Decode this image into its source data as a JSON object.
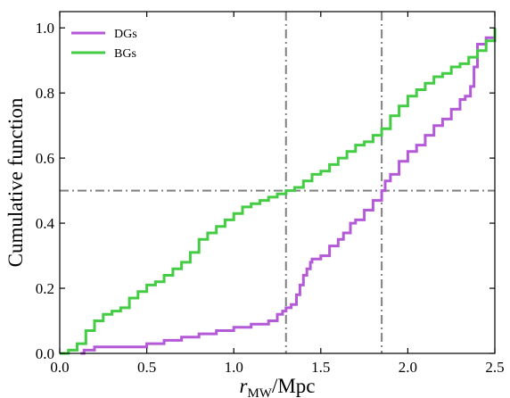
{
  "chart_data": {
    "type": "line",
    "xlabel": {
      "italic": "r",
      "subscript": "MW",
      "rest": "/Mpc"
    },
    "ylabel": "Cumulative function",
    "xlim": [
      0.0,
      2.5
    ],
    "ylim": [
      0.0,
      1.05
    ],
    "xticks": [
      0.0,
      0.5,
      1.0,
      1.5,
      2.0,
      2.5
    ],
    "xtick_labels": [
      "0.0",
      "0.5",
      "1.0",
      "1.5",
      "2.0",
      "2.5"
    ],
    "yticks": [
      0.0,
      0.2,
      0.4,
      0.6,
      0.8,
      1.0
    ],
    "ytick_labels": [
      "0.0",
      "0.2",
      "0.4",
      "0.6",
      "0.8",
      "1.0"
    ],
    "grid": false,
    "legend_position": "top-left",
    "reference_lines": {
      "vertical": [
        1.3,
        1.85
      ],
      "horizontal": [
        0.5
      ],
      "style": "dash-dot",
      "color": "#808080"
    },
    "series": [
      {
        "name": "DGs",
        "color": "#b45ad8",
        "x": [
          0.12,
          0.14,
          0.2,
          0.35,
          0.5,
          0.6,
          0.7,
          0.8,
          0.9,
          1.0,
          1.05,
          1.1,
          1.15,
          1.2,
          1.25,
          1.28,
          1.3,
          1.33,
          1.36,
          1.38,
          1.4,
          1.42,
          1.44,
          1.45,
          1.5,
          1.55,
          1.6,
          1.63,
          1.67,
          1.7,
          1.75,
          1.8,
          1.85,
          1.87,
          1.9,
          1.95,
          2.0,
          2.05,
          2.1,
          2.15,
          2.2,
          2.25,
          2.3,
          2.33,
          2.36,
          2.38,
          2.4,
          2.45,
          2.5
        ],
        "y": [
          0.0,
          0.01,
          0.02,
          0.02,
          0.03,
          0.04,
          0.05,
          0.06,
          0.07,
          0.08,
          0.08,
          0.09,
          0.09,
          0.1,
          0.12,
          0.13,
          0.14,
          0.15,
          0.18,
          0.21,
          0.24,
          0.26,
          0.28,
          0.29,
          0.3,
          0.33,
          0.35,
          0.37,
          0.4,
          0.41,
          0.44,
          0.47,
          0.5,
          0.53,
          0.55,
          0.59,
          0.62,
          0.64,
          0.67,
          0.7,
          0.72,
          0.75,
          0.78,
          0.79,
          0.82,
          0.88,
          0.95,
          0.97,
          1.0
        ]
      },
      {
        "name": "BGs",
        "color": "#44cc44",
        "x": [
          0.0,
          0.05,
          0.1,
          0.15,
          0.2,
          0.25,
          0.3,
          0.35,
          0.4,
          0.45,
          0.5,
          0.55,
          0.6,
          0.65,
          0.7,
          0.75,
          0.8,
          0.85,
          0.9,
          0.95,
          1.0,
          1.05,
          1.1,
          1.15,
          1.2,
          1.25,
          1.3,
          1.35,
          1.4,
          1.45,
          1.5,
          1.55,
          1.6,
          1.65,
          1.7,
          1.75,
          1.8,
          1.85,
          1.9,
          1.95,
          2.0,
          2.05,
          2.1,
          2.15,
          2.2,
          2.25,
          2.3,
          2.35,
          2.4,
          2.45,
          2.5
        ],
        "y": [
          0.0,
          0.01,
          0.03,
          0.07,
          0.1,
          0.12,
          0.13,
          0.14,
          0.17,
          0.19,
          0.21,
          0.22,
          0.24,
          0.26,
          0.28,
          0.31,
          0.35,
          0.37,
          0.39,
          0.41,
          0.43,
          0.45,
          0.46,
          0.47,
          0.48,
          0.49,
          0.5,
          0.51,
          0.53,
          0.55,
          0.56,
          0.58,
          0.6,
          0.62,
          0.64,
          0.65,
          0.67,
          0.69,
          0.73,
          0.76,
          0.79,
          0.81,
          0.83,
          0.85,
          0.86,
          0.88,
          0.89,
          0.91,
          0.93,
          0.96,
          1.0
        ]
      }
    ]
  }
}
